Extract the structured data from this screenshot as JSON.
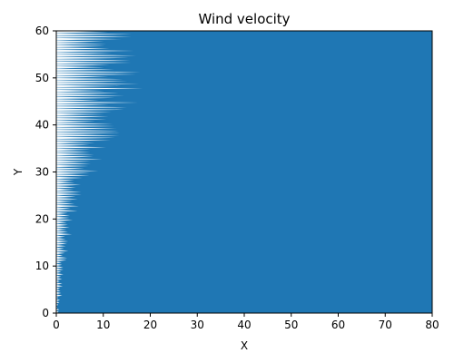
{
  "chart_data": {
    "type": "area",
    "title": "Wind velocity",
    "xlabel": "X",
    "ylabel": "Y",
    "xlim": [
      0,
      80
    ],
    "ylim": [
      0,
      60
    ],
    "xticks": [
      0,
      10,
      20,
      30,
      40,
      50,
      60,
      70,
      80
    ],
    "yticks": [
      0,
      10,
      20,
      30,
      40,
      50,
      60
    ],
    "grid": false,
    "legend": "none",
    "fill_color": "#1f77b4",
    "boundary": {
      "y": [
        0,
        10,
        20,
        25,
        30,
        35,
        40,
        45,
        50,
        55,
        60
      ],
      "x_min_reach": [
        0,
        1,
        2,
        3,
        4,
        6,
        8,
        9,
        10,
        10,
        10
      ],
      "x_max_reach": [
        1,
        2,
        4,
        6,
        9,
        12,
        15,
        18,
        19,
        18,
        17
      ]
    }
  }
}
